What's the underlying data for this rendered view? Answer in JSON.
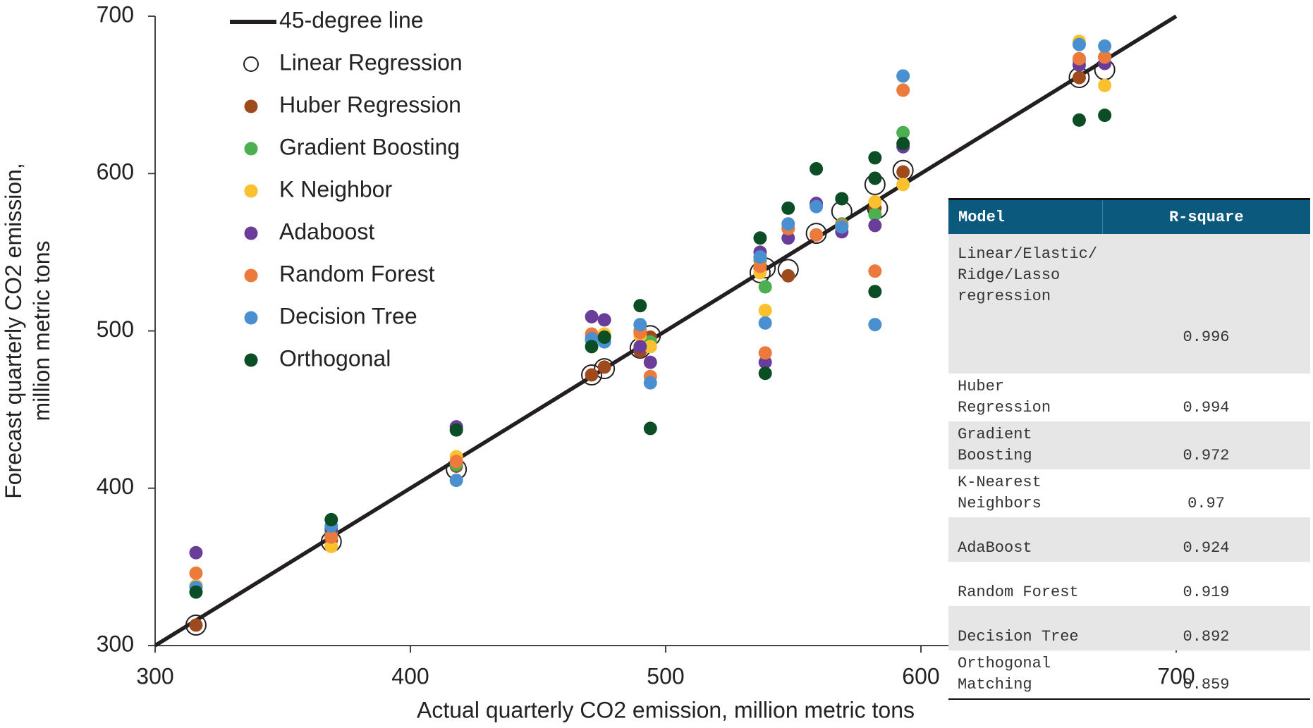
{
  "chart_data": {
    "type": "scatter",
    "x_label": "Actual quarterly CO2 emission, million metric tons",
    "y_label": "Forecast quarterly CO2 emission, million metric tons",
    "xlim": [
      300,
      700
    ],
    "ylim": [
      300,
      700
    ],
    "xticks": [
      300,
      400,
      500,
      600,
      700
    ],
    "yticks": [
      300,
      400,
      500,
      600,
      700
    ],
    "reference_line": {
      "name": "45-degree line",
      "color": "#231f20",
      "x": [
        300,
        700
      ],
      "values": [
        300,
        700
      ]
    },
    "series": [
      {
        "name": "Linear Regression",
        "color": "#231f20",
        "marker": "open",
        "x": [
          316,
          369,
          418,
          471,
          476,
          490,
          494,
          537,
          539,
          548,
          559,
          569,
          582,
          583,
          593,
          662,
          672
        ],
        "values": [
          313,
          366,
          412,
          472,
          476,
          489,
          497,
          537,
          540,
          539,
          562,
          576,
          593,
          578,
          602,
          661,
          666
        ]
      },
      {
        "name": "Huber Regression",
        "color": "#9e4a1c",
        "marker": "filled",
        "x": [
          316,
          369,
          418,
          471,
          476,
          490,
          494,
          537,
          548,
          559,
          582,
          593,
          662,
          672
        ],
        "values": [
          313,
          367,
          414,
          472,
          477,
          487,
          496,
          540,
          535,
          561,
          578,
          601,
          661,
          674
        ]
      },
      {
        "name": "Gradient Boosting",
        "color": "#4caf50",
        "marker": "filled",
        "x": [
          316,
          369,
          418,
          471,
          476,
          490,
          494,
          537,
          539,
          548,
          559,
          569,
          582,
          593,
          662,
          672
        ],
        "values": [
          338,
          372,
          415,
          494,
          497,
          500,
          493,
          545,
          528,
          565,
          580,
          568,
          574,
          626,
          672,
          674
        ]
      },
      {
        "name": "K Neighbor",
        "color": "#fbc02d",
        "marker": "filled",
        "x": [
          316,
          369,
          418,
          471,
          476,
          490,
          494,
          537,
          539,
          548,
          559,
          569,
          582,
          593,
          662,
          672
        ],
        "values": [
          338,
          363,
          420,
          496,
          498,
          497,
          490,
          537,
          513,
          565,
          580,
          566,
          582,
          593,
          684,
          656
        ]
      },
      {
        "name": "Adaboost",
        "color": "#6a3d9a",
        "marker": "filled",
        "x": [
          316,
          369,
          418,
          471,
          476,
          490,
          494,
          537,
          539,
          548,
          559,
          569,
          582,
          593,
          662,
          672
        ],
        "values": [
          359,
          374,
          439,
          509,
          507,
          490,
          480,
          550,
          480,
          559,
          581,
          563,
          567,
          617,
          669,
          670
        ]
      },
      {
        "name": "Random Forest",
        "color": "#ec7a3c",
        "marker": "filled",
        "x": [
          316,
          369,
          418,
          471,
          476,
          490,
          494,
          537,
          539,
          548,
          559,
          569,
          582,
          593,
          662,
          672
        ],
        "values": [
          346,
          369,
          417,
          498,
          496,
          499,
          471,
          541,
          486,
          565,
          561,
          567,
          538,
          653,
          673,
          674
        ]
      },
      {
        "name": "Decision Tree",
        "color": "#4a90d0",
        "marker": "filled",
        "x": [
          316,
          369,
          418,
          471,
          476,
          490,
          494,
          537,
          539,
          548,
          559,
          569,
          582,
          593,
          662,
          672
        ],
        "values": [
          337,
          376,
          405,
          495,
          493,
          504,
          467,
          547,
          505,
          568,
          579,
          566,
          504,
          662,
          682,
          681
        ]
      },
      {
        "name": "Orthogonal",
        "color": "#0b4d25",
        "marker": "filled",
        "x": [
          316,
          369,
          418,
          471,
          476,
          490,
          494,
          537,
          539,
          548,
          559,
          569,
          582,
          582,
          582,
          593,
          662,
          672
        ],
        "values": [
          334,
          380,
          437,
          490,
          496,
          516,
          438,
          559,
          473,
          578,
          603,
          584,
          610,
          597,
          525,
          619,
          634,
          637
        ]
      }
    ]
  },
  "table": {
    "header": [
      "Model",
      "R-square"
    ],
    "rows": [
      [
        "Linear/Elastic/Ridge/Lasso regression",
        0.996
      ],
      [
        "Huber Regression",
        0.994
      ],
      [
        "Gradient Boosting",
        0.972
      ],
      [
        "K-Nearest Neighbors",
        0.97
      ],
      [
        "AdaBoost",
        0.924
      ],
      [
        "Random Forest",
        0.919
      ],
      [
        "Decision Tree",
        0.892
      ],
      [
        "Orthogonal Matching",
        0.859
      ]
    ]
  }
}
